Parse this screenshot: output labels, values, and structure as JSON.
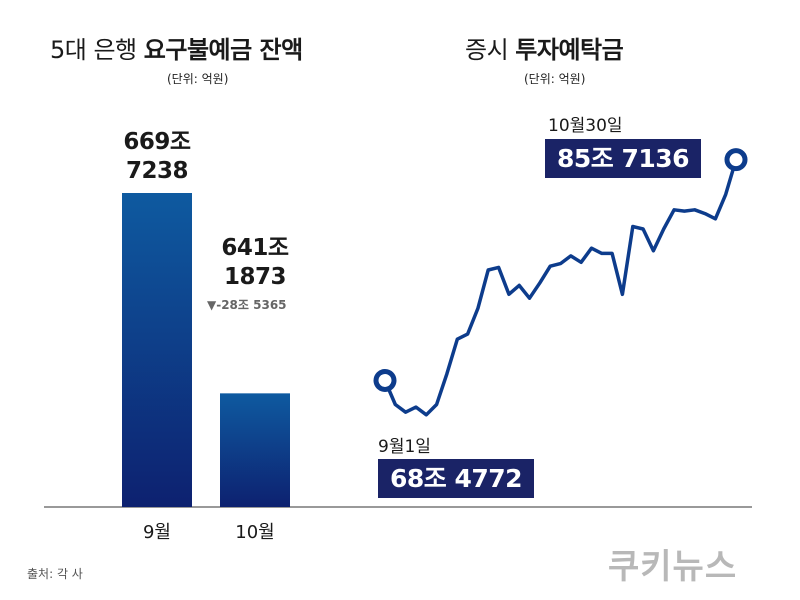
{
  "chart_data": [
    {
      "type": "bar",
      "title_prefix": "5대 은행 ",
      "title_bold": "요구불예금 잔액",
      "unit": "(단위: 억원)",
      "categories": [
        "9월",
        "10월"
      ],
      "values": [
        6697238,
        6411873
      ],
      "value_labels": [
        [
          "669조",
          "7238"
        ],
        [
          "641조",
          "1873"
        ]
      ],
      "change_label": "▼-28조 5365",
      "colors": {
        "top": "#0e5aa0",
        "bottom": "#0d2170"
      }
    },
    {
      "type": "line",
      "title_prefix": "증시 ",
      "title_bold": "투자예탁금",
      "unit": "(단위: 억원)",
      "start": {
        "date": "9월1일",
        "value_label": "68조 4772",
        "value": 684772
      },
      "end": {
        "date": "10월30일",
        "value_label": "85조 7136",
        "value": 857136
      },
      "series": [
        {
          "values": [
            684772,
            666000,
            660000,
            664000,
            658000,
            666000,
            690000,
            717000,
            721000,
            741000,
            771000,
            773000,
            752000,
            759000,
            749000,
            761000,
            774000,
            776000,
            782000,
            777000,
            788000,
            784000,
            784000,
            752000,
            805000,
            803000,
            786000,
            803000,
            818000,
            817000,
            818000,
            815000,
            811000,
            830000,
            857136
          ]
        }
      ],
      "color": "#0d3c8c"
    }
  ],
  "source": "출처: 각 사",
  "brand": "쿠키뉴스"
}
